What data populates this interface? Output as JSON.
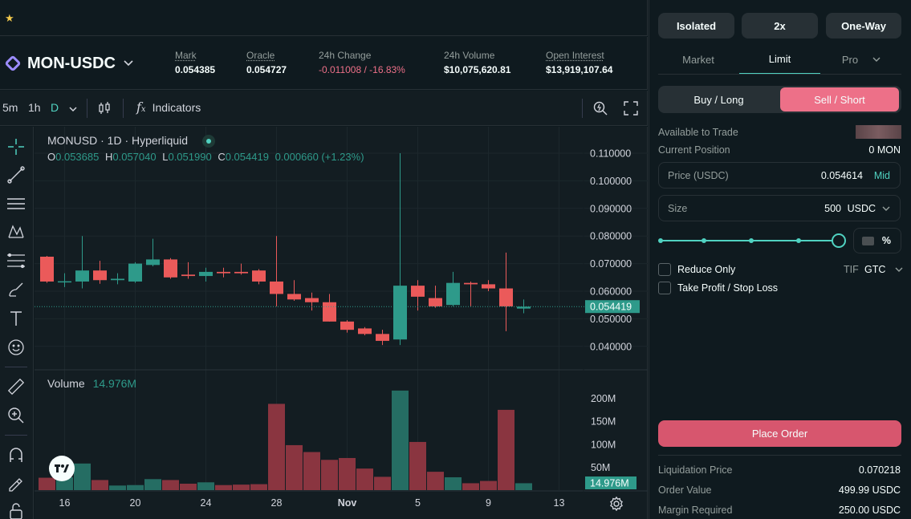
{
  "favorites_bar": {
    "star_icon": "star-icon"
  },
  "market": {
    "symbol": "MON-USDC",
    "stats": [
      {
        "label": "Mark",
        "value": "0.054385"
      },
      {
        "label": "Oracle",
        "value": "0.054727"
      },
      {
        "label": "24h Change",
        "value": "-0.011008 / -16.83%"
      },
      {
        "label": "24h Volume",
        "value": "$10,075,620.81"
      },
      {
        "label": "Open Interest",
        "value": "$13,919,107.64"
      }
    ]
  },
  "chart_toolbar": {
    "intervals": [
      "5m",
      "1h",
      "D"
    ],
    "indicators_label": "Indicators"
  },
  "chart_legend": {
    "title": "MONUSD · 1D · Hyperliquid",
    "o_label": "O",
    "o": "0.053685",
    "h_label": "H",
    "h": "0.057040",
    "l_label": "L",
    "l": "0.051990",
    "c_label": "C",
    "c": "0.054419",
    "change": "0.000660 (+1.23%)",
    "volume_label": "Volume",
    "volume_value": "14.976M"
  },
  "chart_data": {
    "type": "candlestick",
    "price_ticks": [
      "0.110000",
      "0.100000",
      "0.090000",
      "0.080000",
      "0.070000",
      "0.060000",
      "0.050000",
      "0.040000"
    ],
    "price_tick_values": [
      0.11,
      0.1,
      0.09,
      0.08,
      0.07,
      0.06,
      0.05,
      0.04
    ],
    "last_price_label": "0.054419",
    "last_price": 0.054419,
    "volume_ticks": [
      "200M",
      "150M",
      "100M",
      "50M"
    ],
    "volume_tick_values": [
      200,
      150,
      100,
      50
    ],
    "last_volume_label": "14.976M",
    "x_ticks": [
      "16",
      "20",
      "24",
      "28",
      "Nov",
      "5",
      "9",
      "13"
    ],
    "x_tick_index": [
      1,
      5,
      9,
      13,
      17,
      21,
      25,
      29
    ],
    "candles": [
      {
        "o": 0.0725,
        "h": 0.0728,
        "l": 0.063,
        "c": 0.0635,
        "v": 27
      },
      {
        "o": 0.0635,
        "h": 0.0665,
        "l": 0.0615,
        "c": 0.0636,
        "v": 28
      },
      {
        "o": 0.0635,
        "h": 0.08,
        "l": 0.061,
        "c": 0.0675,
        "v": 58
      },
      {
        "o": 0.0675,
        "h": 0.071,
        "l": 0.0627,
        "c": 0.064,
        "v": 22
      },
      {
        "o": 0.064,
        "h": 0.0665,
        "l": 0.0625,
        "c": 0.0645,
        "v": 10
      },
      {
        "o": 0.0635,
        "h": 0.0705,
        "l": 0.063,
        "c": 0.07,
        "v": 11
      },
      {
        "o": 0.0695,
        "h": 0.079,
        "l": 0.069,
        "c": 0.0715,
        "v": 24
      },
      {
        "o": 0.0715,
        "h": 0.072,
        "l": 0.0645,
        "c": 0.065,
        "v": 22
      },
      {
        "o": 0.066,
        "h": 0.0705,
        "l": 0.0645,
        "c": 0.0655,
        "v": 14
      },
      {
        "o": 0.0655,
        "h": 0.0685,
        "l": 0.0635,
        "c": 0.067,
        "v": 17
      },
      {
        "o": 0.067,
        "h": 0.0685,
        "l": 0.065,
        "c": 0.0665,
        "v": 11
      },
      {
        "o": 0.067,
        "h": 0.07,
        "l": 0.066,
        "c": 0.0665,
        "v": 12
      },
      {
        "o": 0.0675,
        "h": 0.068,
        "l": 0.0625,
        "c": 0.0635,
        "v": 13
      },
      {
        "o": 0.0635,
        "h": 0.08,
        "l": 0.0545,
        "c": 0.059,
        "v": 188
      },
      {
        "o": 0.059,
        "h": 0.064,
        "l": 0.0565,
        "c": 0.057,
        "v": 98
      },
      {
        "o": 0.0575,
        "h": 0.0595,
        "l": 0.053,
        "c": 0.056,
        "v": 83
      },
      {
        "o": 0.056,
        "h": 0.059,
        "l": 0.049,
        "c": 0.049,
        "v": 66
      },
      {
        "o": 0.049,
        "h": 0.0495,
        "l": 0.045,
        "c": 0.046,
        "v": 70
      },
      {
        "o": 0.0465,
        "h": 0.047,
        "l": 0.044,
        "c": 0.0445,
        "v": 47
      },
      {
        "o": 0.0445,
        "h": 0.046,
        "l": 0.0405,
        "c": 0.042,
        "v": 29
      },
      {
        "o": 0.0425,
        "h": 0.11,
        "l": 0.0405,
        "c": 0.062,
        "v": 217
      },
      {
        "o": 0.062,
        "h": 0.064,
        "l": 0.053,
        "c": 0.058,
        "v": 105
      },
      {
        "o": 0.0575,
        "h": 0.062,
        "l": 0.054,
        "c": 0.0545,
        "v": 40
      },
      {
        "o": 0.055,
        "h": 0.067,
        "l": 0.0545,
        "c": 0.063,
        "v": 28
      },
      {
        "o": 0.063,
        "h": 0.0635,
        "l": 0.0545,
        "c": 0.0625,
        "v": 15
      },
      {
        "o": 0.0625,
        "h": 0.064,
        "l": 0.06,
        "c": 0.061,
        "v": 20
      },
      {
        "o": 0.061,
        "h": 0.074,
        "l": 0.0455,
        "c": 0.0545,
        "v": 175
      },
      {
        "o": 0.0537,
        "h": 0.057,
        "l": 0.052,
        "c": 0.0544,
        "v": 15
      }
    ]
  },
  "order_panel": {
    "margin_mode": "Isolated",
    "leverage": "2x",
    "position_mode": "One-Way",
    "tabs": [
      "Market",
      "Limit",
      "Pro"
    ],
    "active_tab": "Limit",
    "buy_label": "Buy / Long",
    "sell_label": "Sell / Short",
    "available_label": "Available to Trade",
    "position_label": "Current Position",
    "position_value": "0 MON",
    "price_label": "Price (USDC)",
    "price_value": "0.054614",
    "mid_label": "Mid",
    "size_label": "Size",
    "size_value": "500",
    "size_unit": "USDC",
    "slider_percent": 100,
    "percent_sign": "%",
    "reduce_only_label": "Reduce Only",
    "tif_label": "TIF",
    "tif_value": "GTC",
    "tpsl_label": "Take Profit / Stop Loss",
    "place_order_label": "Place Order",
    "liq_label": "Liquidation Price",
    "liq_value": "0.070218",
    "order_value_label": "Order Value",
    "order_value": "499.99 USDC",
    "margin_label": "Margin Required",
    "margin_value": "250.00 USDC"
  },
  "colors": {
    "up": "#2e9a8a",
    "down": "#eb5a5a",
    "accent": "#50d2c1",
    "sell": "#ed7088"
  }
}
